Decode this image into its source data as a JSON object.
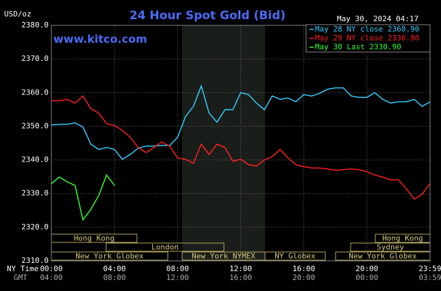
{
  "chart_data": {
    "type": "line",
    "title": "24 Hour Spot Gold (Bid)",
    "y_label": "USD/oz",
    "timestamp": "May 30, 2024 04:17",
    "watermark": "www.kitco.com",
    "x_row_labels": [
      "NY Time",
      "GMT"
    ],
    "sessions": [
      "Hong Kong",
      "Hong Kong",
      "London",
      "Sydney",
      "New York Globex",
      "New York NYMEX",
      "NY Globex",
      "New York Globex"
    ],
    "xlim": [
      0,
      24
    ],
    "xticks": [
      {
        "value": 0,
        "label": "00:00"
      },
      {
        "value": 4,
        "label": "04:00"
      },
      {
        "value": 8,
        "label": "08:00"
      },
      {
        "value": 12,
        "label": "12:00"
      },
      {
        "value": 16,
        "label": "16:00"
      },
      {
        "value": 20,
        "label": "20:00"
      },
      {
        "value": 24,
        "label": "23:59"
      }
    ],
    "xticks_gmt": [
      {
        "value": 0,
        "label": "04:00"
      },
      {
        "value": 4,
        "label": "08:00"
      },
      {
        "value": 8,
        "label": "12:00"
      },
      {
        "value": 12,
        "label": "16:00"
      },
      {
        "value": 16,
        "label": "20:00"
      },
      {
        "value": 20,
        "label": "00:00"
      },
      {
        "value": 24,
        "label": "03:59"
      }
    ],
    "ylim": [
      2310,
      2380
    ],
    "yticks": [
      {
        "value": 2310,
        "label": "2310.0"
      },
      {
        "value": 2320,
        "label": "2320.0"
      },
      {
        "value": 2330,
        "label": "2330.0"
      },
      {
        "value": 2340,
        "label": "2340.0"
      },
      {
        "value": 2350,
        "label": "2350.0"
      },
      {
        "value": 2360,
        "label": "2360.0"
      },
      {
        "value": 2370,
        "label": "2370.0"
      },
      {
        "value": 2380,
        "label": "2380.0"
      }
    ],
    "grid": true,
    "x": [
      0,
      0.5,
      1,
      1.5,
      2,
      2.5,
      3,
      3.5,
      4,
      4.5,
      5,
      5.5,
      6,
      6.5,
      7,
      7.5,
      8,
      8.5,
      9,
      9.5,
      10,
      10.5,
      11,
      11.5,
      12,
      12.5,
      13,
      13.5,
      14,
      14.5,
      15,
      15.5,
      16,
      16.5,
      17,
      17.5,
      18,
      18.5,
      19,
      19.5,
      20,
      20.5,
      21,
      21.5,
      22,
      22.5,
      23,
      23.5,
      24
    ],
    "series": [
      {
        "name": "May 28 NY close 2360.90",
        "color": "#33ccff",
        "values": [
          2350.4,
          2350.6,
          2350.6,
          2351.0,
          2349.8,
          2344.7,
          2343.1,
          2343.7,
          2343.1,
          2340.2,
          2341.6,
          2343.5,
          2344.1,
          2344.1,
          2344.3,
          2344.3,
          2346.7,
          2352.9,
          2355.9,
          2362.0,
          2353.9,
          2351.2,
          2354.9,
          2354.9,
          2360.0,
          2359.4,
          2356.9,
          2354.9,
          2359.0,
          2358.0,
          2358.4,
          2357.3,
          2359.4,
          2359.0,
          2359.8,
          2361.0,
          2361.4,
          2361.4,
          2359.0,
          2358.6,
          2358.6,
          2360.0,
          2358.0,
          2356.9,
          2357.3,
          2357.3,
          2358.0,
          2355.9,
          2357.3
        ]
      },
      {
        "name": "May 29 NY close 2336.90",
        "color": "#ff2020",
        "values": [
          2357.6,
          2357.6,
          2358.0,
          2356.9,
          2359.0,
          2355.3,
          2353.9,
          2350.8,
          2350.2,
          2348.8,
          2346.7,
          2343.7,
          2342.2,
          2343.7,
          2345.3,
          2344.1,
          2340.6,
          2340.2,
          2339.0,
          2344.7,
          2341.6,
          2344.7,
          2343.7,
          2339.6,
          2340.2,
          2338.6,
          2338.2,
          2340.0,
          2341.0,
          2343.1,
          2340.6,
          2338.6,
          2338.0,
          2337.6,
          2337.6,
          2337.3,
          2336.9,
          2337.1,
          2337.3,
          2337.1,
          2336.5,
          2335.5,
          2334.9,
          2334.1,
          2334.1,
          2331.4,
          2328.4,
          2329.8,
          2333.1
        ]
      },
      {
        "name": "May 30 Last 2330.90",
        "color": "#33ff33",
        "values": [
          2332.9,
          2334.9,
          2333.5,
          2332.4,
          2322.2,
          2325.3,
          2329.4,
          2335.5,
          2332.4,
          null,
          null,
          null,
          null,
          null,
          null,
          null,
          null,
          null,
          null,
          null,
          null,
          null,
          null,
          null,
          null,
          null,
          null,
          null,
          null,
          null,
          null,
          null,
          null,
          null,
          null,
          null,
          null,
          null,
          null,
          null,
          null,
          null,
          null,
          null,
          null,
          null,
          null,
          null,
          null
        ]
      }
    ]
  }
}
